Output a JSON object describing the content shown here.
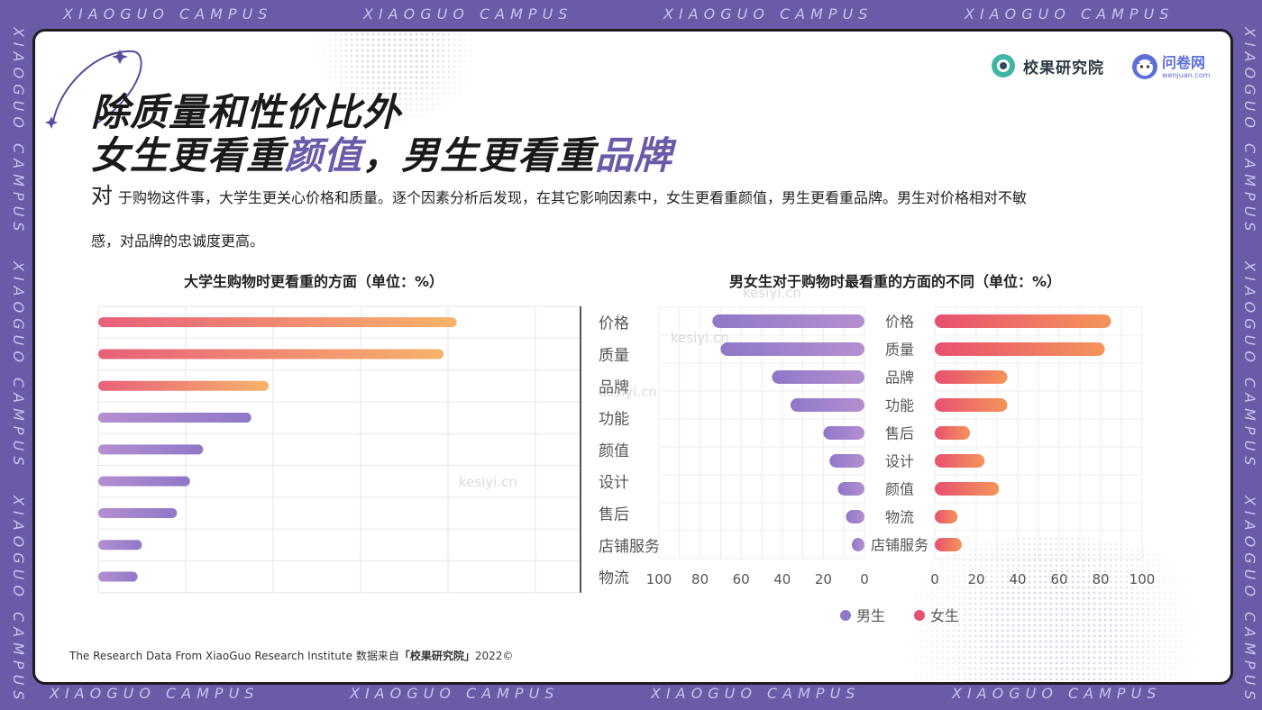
{
  "frame": {
    "text_top": "XIAOGUO  CAMPUS",
    "text_side": "XIAOGUO  CAMPUS"
  },
  "logos": {
    "brand1": "校果研究院",
    "brand2": "问卷网",
    "brand2_sub": "wenjuan.com"
  },
  "title": {
    "line1": "除质量和性价比外",
    "line2_a": "女生更看重",
    "line2_b": "颜值",
    "line2_c": "，男生更看重",
    "line2_d": "品牌"
  },
  "paragraph": {
    "first_char": "对",
    "line1_rest": "于购物这件事，大学生更关心价格和质量。逐个因素分析后发现，在其它影响因素中，女生更看重颜值，男生更看重品牌。男生对价格相对不敏",
    "line2": "感，对品牌的忠诚度更高。"
  },
  "watermark": "kesiyi.cn",
  "footer": {
    "text": "The Research Data From XiaoGuo Research Institute 数据来自",
    "bold": "「校果研究院」",
    "year": "2022©"
  },
  "colors": {
    "accent": "#6a5aa8",
    "female_start": "#e8506f",
    "female_end": "#f4955b",
    "male_start": "#b48fd0",
    "male_end": "#8f78c8"
  },
  "chart_data": [
    {
      "type": "bar",
      "orientation": "horizontal",
      "title": "大学生购物时更看重的方面（单位：%）",
      "categories": [
        "价格",
        "质量",
        "品牌",
        "功能",
        "颜值",
        "设计",
        "售后",
        "店铺服务",
        "物流"
      ],
      "values": [
        82,
        79,
        39,
        35,
        24,
        21,
        18,
        10,
        9
      ],
      "xlim": [
        0,
        100
      ],
      "grid": true
    },
    {
      "type": "bar",
      "orientation": "horizontal",
      "title": "男女生对于购物时最看重的方面的不同（单位：%）",
      "categories": [
        "价格",
        "质量",
        "品牌",
        "功能",
        "售后",
        "设计",
        "颜值",
        "物流",
        "店铺服务"
      ],
      "series": [
        {
          "name": "男生",
          "values": [
            74,
            70,
            45,
            36,
            20,
            17,
            13,
            9,
            3
          ]
        },
        {
          "name": "女生",
          "values": [
            85,
            82,
            35,
            35,
            17,
            24,
            31,
            11,
            13
          ]
        }
      ],
      "xticks_left": [
        "100",
        "80",
        "60",
        "40",
        "20",
        "0"
      ],
      "xticks_right": [
        "0",
        "20",
        "40",
        "60",
        "80",
        "100"
      ],
      "xlim": [
        0,
        100
      ],
      "legend": "bottom",
      "grid": true
    }
  ]
}
